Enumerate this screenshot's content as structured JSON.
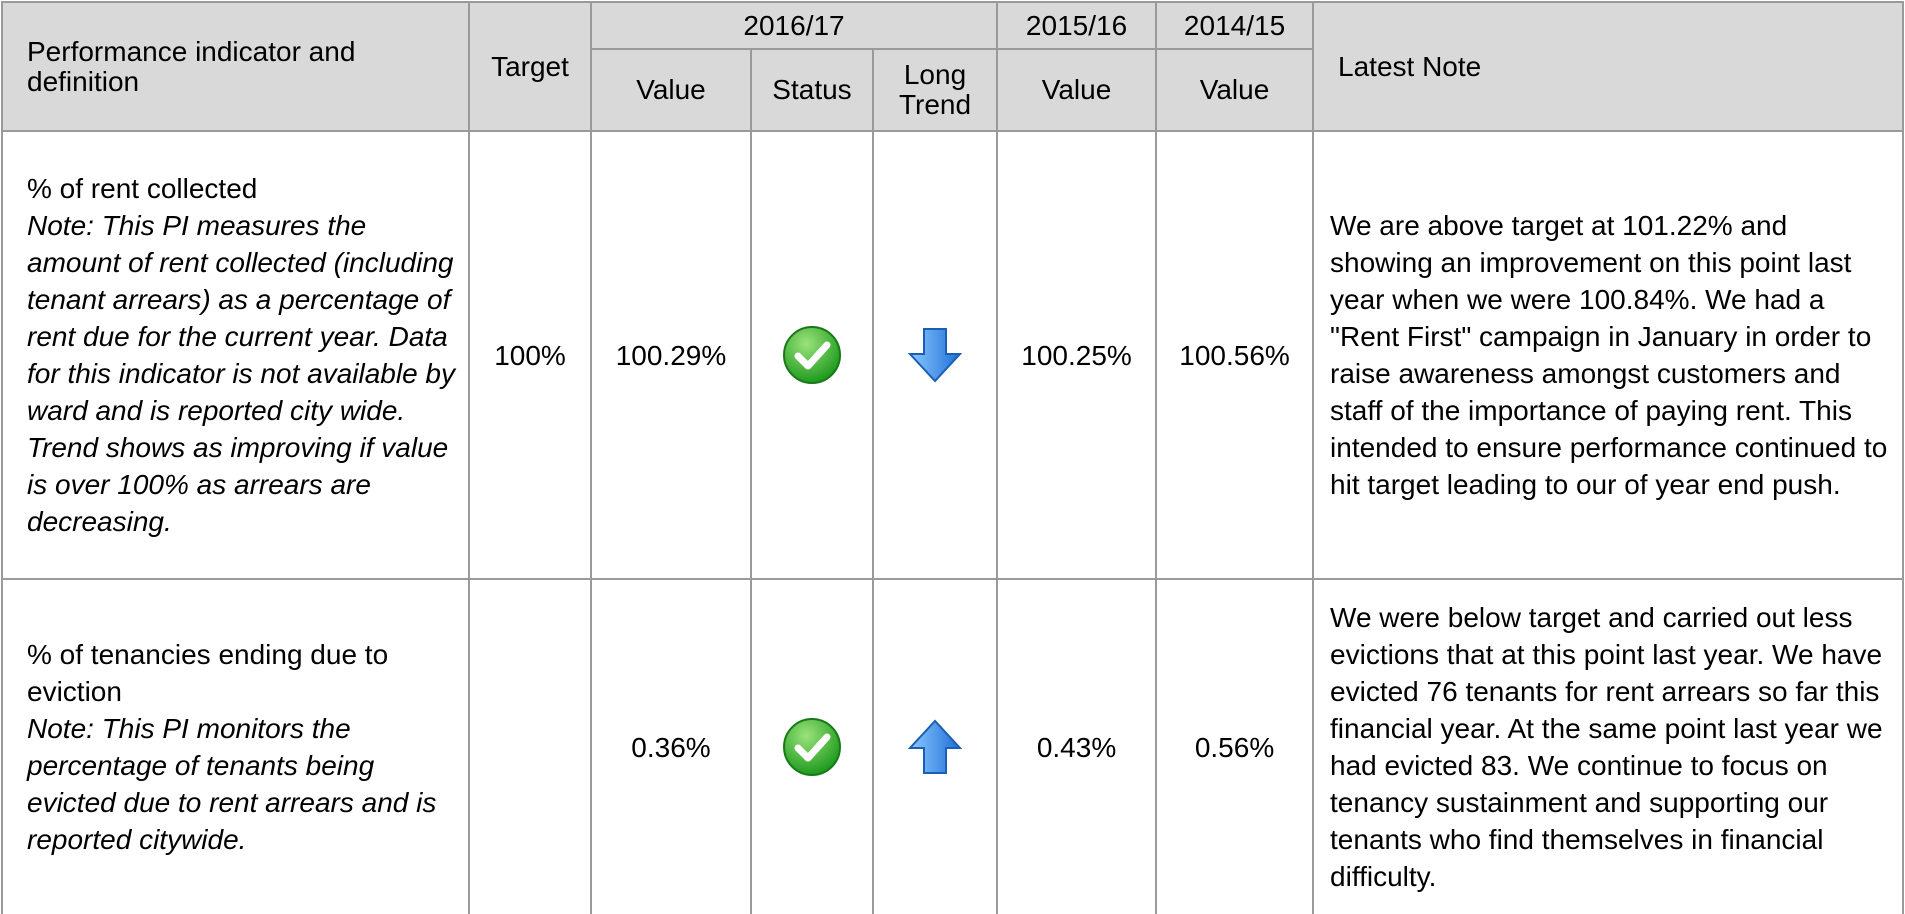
{
  "header": {
    "indicator": "Performance indicator and definition",
    "target": "Target",
    "years": [
      "2016/17",
      "2015/16",
      "2014/15"
    ],
    "value": "Value",
    "status": "Status",
    "long_trend": "Long Trend",
    "latest_note": "Latest Note"
  },
  "rows": [
    {
      "indicator": "% of rent collected",
      "notes": [
        "Note: This PI measures the amount of rent collected (including tenant arrears) as a percentage of rent due for the current year. Data for this indicator is not available by ward and is reported city wide.",
        "Trend shows as improving if value is over 100% as arrears are decreasing."
      ],
      "target": "100%",
      "values": [
        "100.29%",
        "100.25%",
        "100.56%"
      ],
      "latest_note": "We are above target at 101.22% and showing an improvement on this point last year when we were 100.84%. We had a \"Rent First\" campaign in January in order to raise awareness amongst customers and staff of the importance of paying rent. This intended to ensure performance continued to hit target leading to our of year end push."
    },
    {
      "indicator": "% of tenancies ending due to eviction",
      "notes": [
        "Note: This PI monitors the percentage of tenants being evicted due to rent arrears and is reported citywide."
      ],
      "values": [
        "0.36%",
        "0.43%",
        "0.56%"
      ],
      "latest_note": "We were below target and carried out less evictions that at this point last year. We have evicted 76 tenants for rent arrears so far this financial year. At the same point last year we had evicted 83. We continue to focus on tenancy sustainment and supporting our tenants who find themselves in financial difficulty."
    }
  ]
}
